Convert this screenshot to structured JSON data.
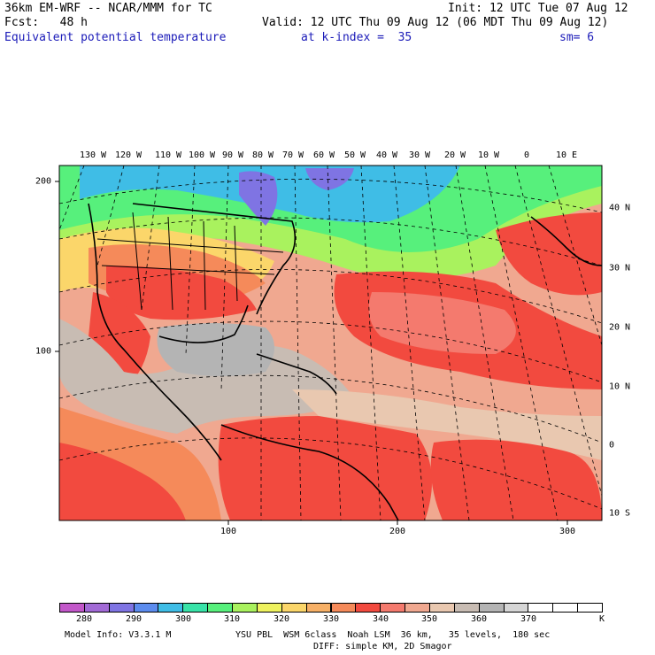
{
  "header": {
    "model": "36km EM-WRF -- NCAR/MMM for TC",
    "init": "Init: 12 UTC Tue 07 Aug 12",
    "fcst": "Fcst:   48 h",
    "valid": "Valid: 12 UTC Thu 09 Aug 12 (06 MDT Thu 09 Aug 12)",
    "field": "Equivalent potential temperature",
    "level": "at k-index =  35",
    "smooth": "sm= 6"
  },
  "map": {
    "lon_labels": [
      "130 W",
      "120 W",
      "110 W",
      "100 W",
      "90 W",
      "80 W",
      "70 W",
      "60 W",
      "50 W",
      "40 W",
      "30 W",
      "20 W",
      "10 W",
      "0",
      "10 E"
    ],
    "lat_labels": [
      "40 N",
      "30 N",
      "20 N",
      "10 N",
      "0",
      "10 S"
    ],
    "grid_y_labels": [
      "200",
      "100"
    ],
    "grid_x_labels": [
      "100",
      "200",
      "300"
    ]
  },
  "colorbar": {
    "colors": [
      "#c257c9",
      "#a26ad6",
      "#7f74e3",
      "#5c8cee",
      "#3fbde6",
      "#38e3a8",
      "#57f07c",
      "#a9f25e",
      "#eef25e",
      "#fbd66a",
      "#f7b066",
      "#f58a5a",
      "#f24a3f",
      "#f47a6e",
      "#f0a890",
      "#e9c8b0",
      "#c8bcb3",
      "#b4b4b4",
      "#d6d6d6",
      "#ffffff",
      "#ffffff",
      "#ffffff"
    ],
    "ticks": [
      "280",
      "290",
      "300",
      "310",
      "320",
      "330",
      "340",
      "350",
      "360",
      "370"
    ],
    "unit": "K"
  },
  "footer": {
    "line1_left": "Model Info: V3.3.1 M",
    "line1_right": "YSU PBL  WSM 6class  Noah LSM  36 km,   35 levels,  180 sec",
    "line2": "DIFF: simple KM, 2D Smagor"
  }
}
